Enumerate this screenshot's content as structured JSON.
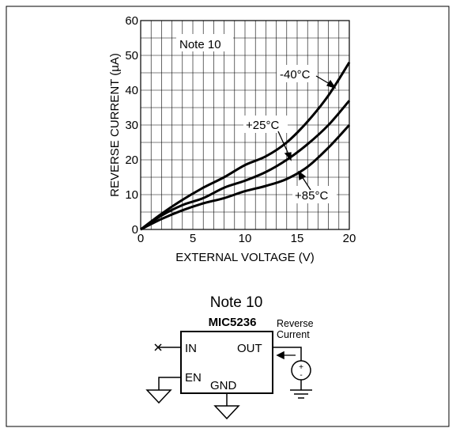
{
  "chart_data": {
    "type": "line",
    "note": "Note 10",
    "xlabel": "EXTERNAL VOLTAGE (V)",
    "ylabel": "REVERSE CURRENT (µA)",
    "xlim": [
      0,
      20
    ],
    "ylim": [
      0,
      60
    ],
    "xticks": [
      0,
      5,
      10,
      15,
      20
    ],
    "yticks": [
      0,
      10,
      20,
      30,
      40,
      50,
      60
    ],
    "xgrid_step": 1,
    "ygrid_step": 5,
    "grid": true,
    "series": [
      {
        "name": "-40°C",
        "x": [
          0,
          2,
          4,
          6,
          8,
          10,
          12,
          14,
          16,
          18,
          20
        ],
        "y": [
          0,
          4.5,
          8.5,
          12,
          15,
          18.5,
          21,
          25,
          31,
          38.5,
          48
        ]
      },
      {
        "name": "+25°C",
        "x": [
          0,
          2,
          4,
          6,
          8,
          10,
          12,
          14,
          16,
          18,
          20
        ],
        "y": [
          0,
          4,
          7,
          9,
          12,
          14,
          16.5,
          20,
          24.5,
          30,
          37
        ]
      },
      {
        "name": "+85°C",
        "x": [
          0,
          2,
          4,
          6,
          8,
          10,
          12,
          14,
          16,
          18,
          20
        ],
        "y": [
          0,
          3,
          5.5,
          7.5,
          9,
          11,
          12.5,
          14.5,
          18,
          23.5,
          30
        ]
      }
    ]
  },
  "diagram": {
    "title": "Note 10",
    "chip_name": "MIC5236",
    "pin_in": "IN",
    "pin_out": "OUT",
    "pin_en": "EN",
    "pin_gnd": "GND",
    "source_plus": "+",
    "source_minus": "-",
    "current_label_1": "Reverse",
    "current_label_2": "Current"
  }
}
